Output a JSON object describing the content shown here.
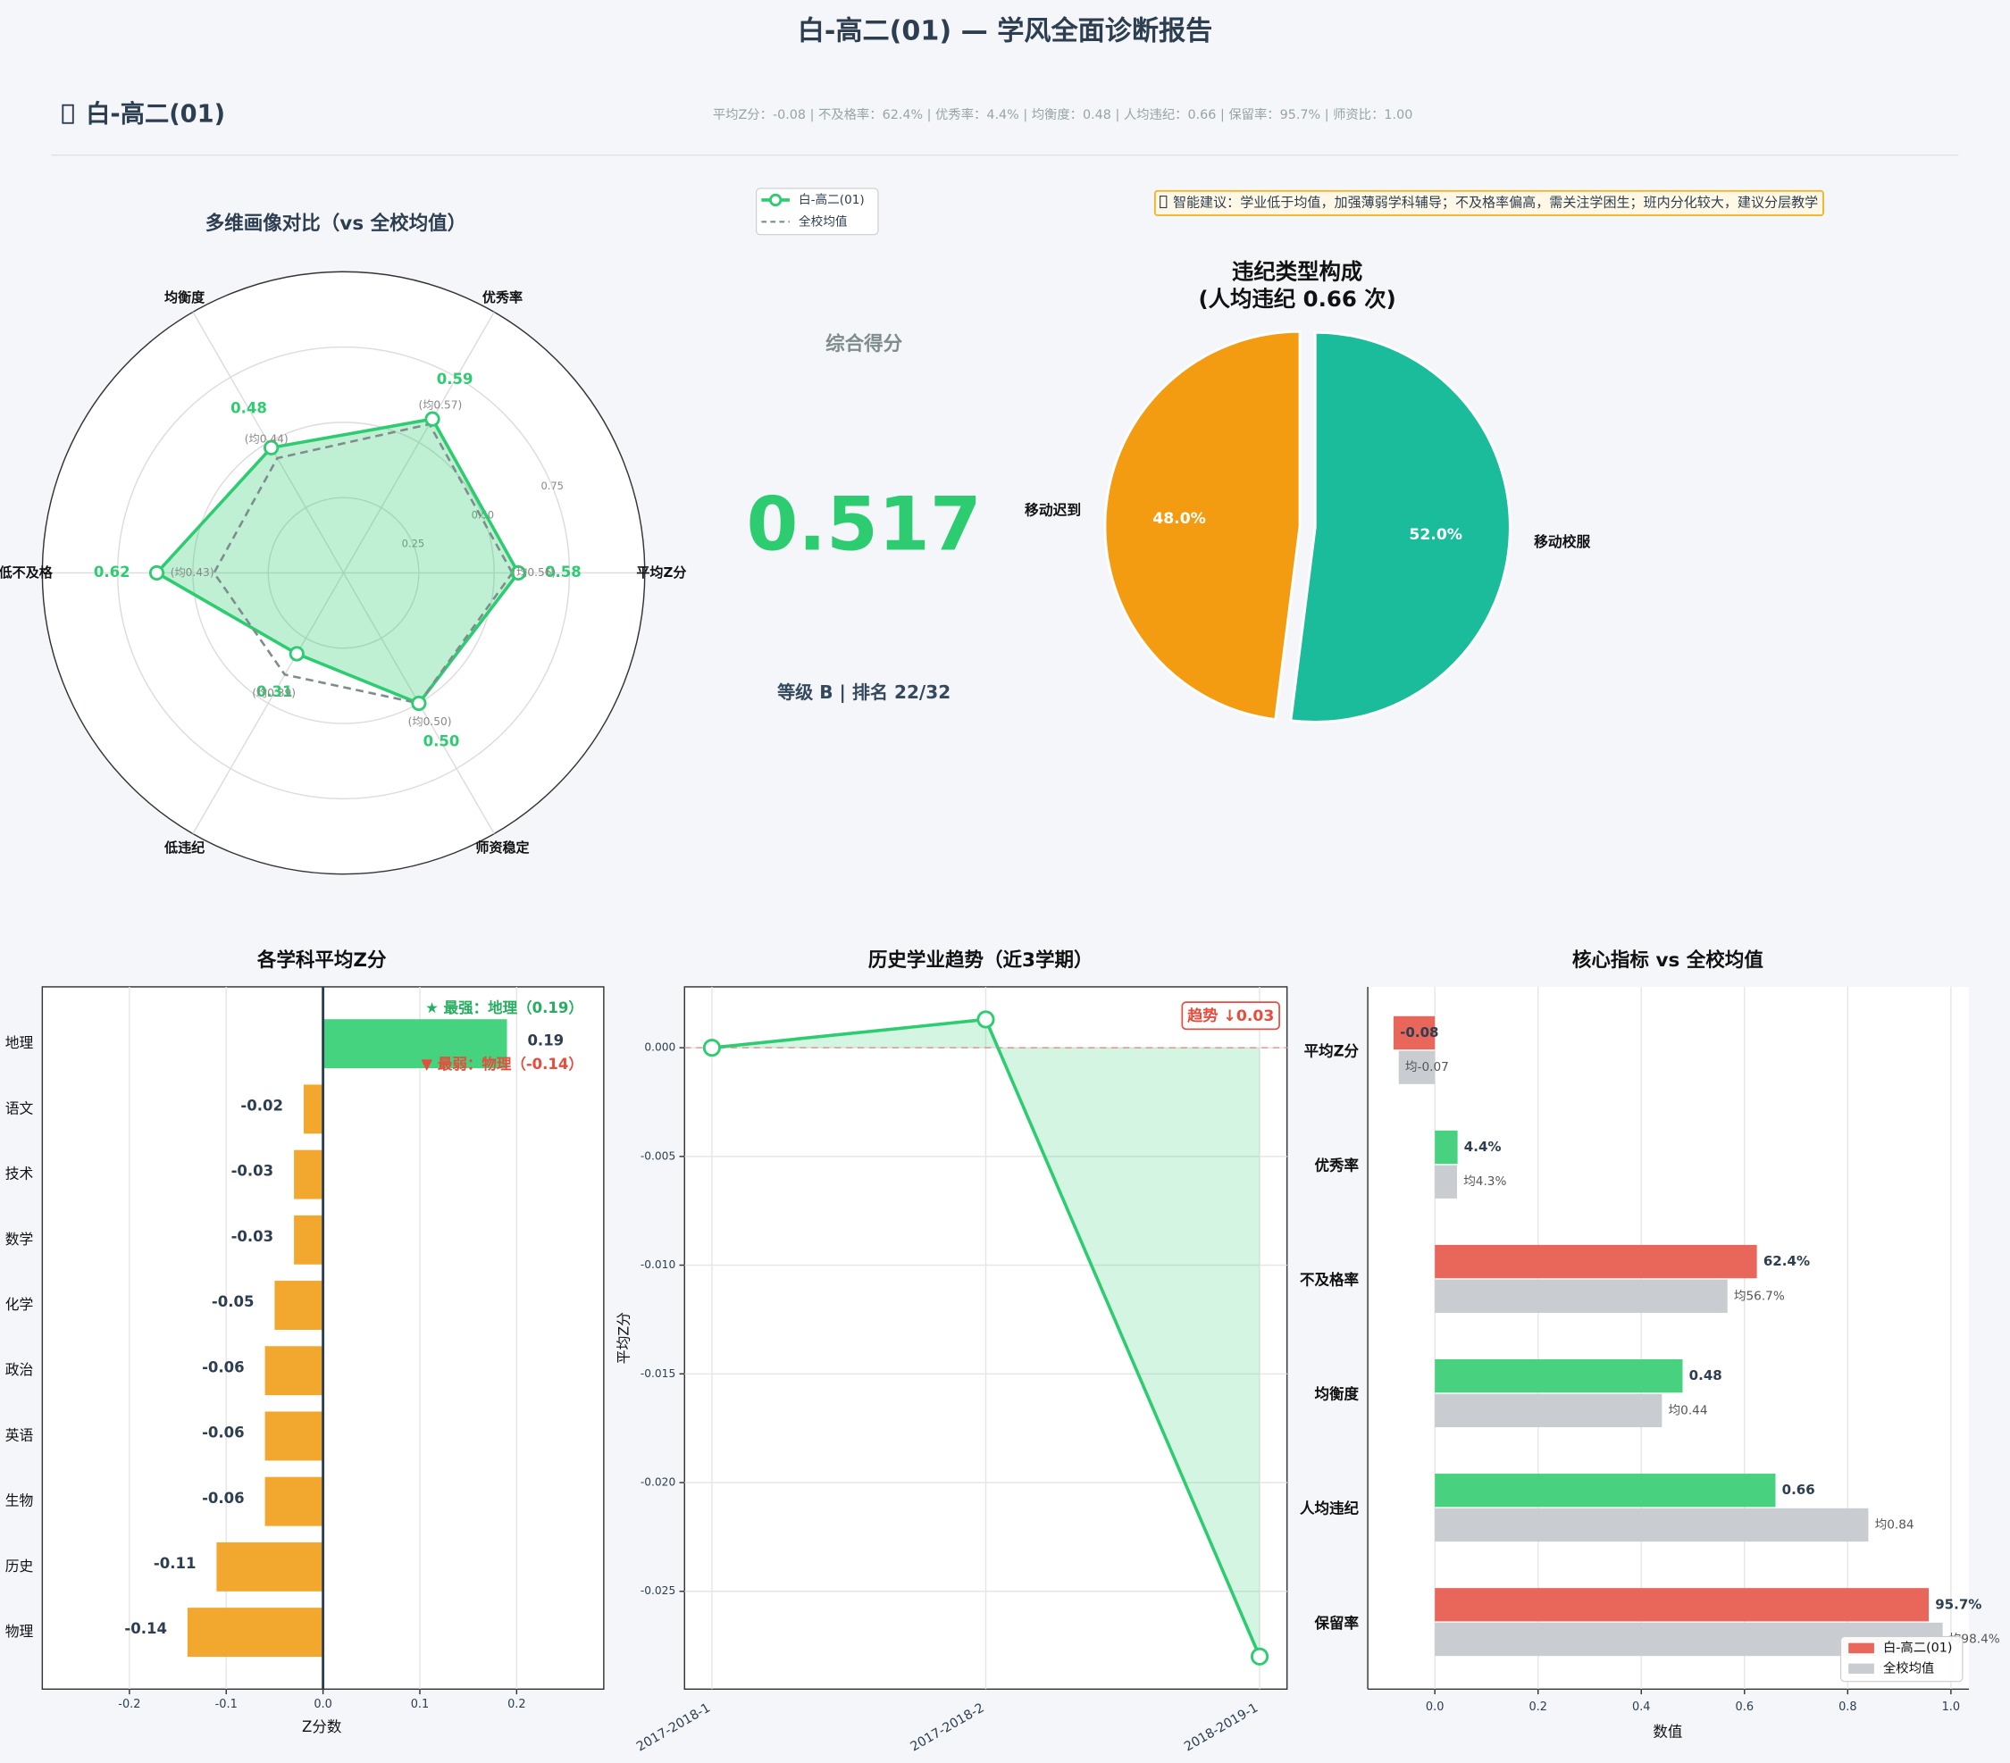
{
  "title": "白-高二(01) — 学风全面诊断报告",
  "header": {
    "class_name": "白-高二(01)",
    "summary": "平均Z分：-0.08  |  不及格率：62.4%  |  优秀率：4.4%  |  均衡度：0.48  |  人均违纪：0.66  |  保留率：95.7%  |  师资比：1.00"
  },
  "score": {
    "label": "综合得分",
    "value": 0.517,
    "rank_line": "等级 B  |  排名 22/32"
  },
  "advice": "智能建议：学业低于均值，加强薄弱学科辅导；不及格率偏高，需关注学困生；班内分化较大，建议分层教学",
  "chart_data": [
    {
      "type": "radar",
      "title": "多维画像对比（vs 全校均值）",
      "categories": [
        "平均Z分",
        "优秀率",
        "均衡度",
        "低不及格",
        "低违纪",
        "师资稳定"
      ],
      "rlim": [
        0,
        1
      ],
      "rticks": [
        0.25,
        {
          "value": 0.5,
          "label": "0.50"
        },
        0.75
      ],
      "legend": "top",
      "series": [
        {
          "name": "白-高二(01)",
          "color": "#2ecc71",
          "marker": "o",
          "values": [
            0.58,
            0.59,
            0.48,
            0.62,
            0.31,
            0.5
          ],
          "value_labels": [
            "0.58",
            "0.59",
            "0.48",
            "0.62",
            "0.31",
            "0.50"
          ]
        },
        {
          "name": "全校均值",
          "color": "#7f8c8d",
          "linestyle": "dashed",
          "values": [
            0.56,
            0.57,
            0.44,
            0.43,
            0.39,
            0.5
          ],
          "value_labels": [
            "(均0.56)",
            "(均0.57)",
            "(均0.44)",
            "(均0.43)",
            "(均0.39)",
            "(均0.50)"
          ]
        }
      ]
    },
    {
      "type": "pie",
      "title": "违纪类型构成",
      "subtitle": "(人均违纪 0.66 次)",
      "categories": [
        "移动迟到",
        "移动校服"
      ],
      "values": [
        48.0,
        52.0
      ],
      "value_labels": [
        "48.0%",
        "52.0%"
      ],
      "colors": [
        "#f39c12",
        "#1abc9c"
      ]
    },
    {
      "type": "hbar",
      "title": "各学科平均Z分",
      "categories": [
        "地理",
        "语文",
        "技术",
        "数学",
        "化学",
        "政治",
        "英语",
        "生物",
        "历史",
        "物理"
      ],
      "values": [
        0.19,
        -0.02,
        -0.03,
        -0.03,
        -0.05,
        -0.06,
        -0.06,
        -0.06,
        -0.11,
        -0.14
      ],
      "colors": [
        "#46d37f",
        "#f2a72e",
        "#f2a72e",
        "#f2a72e",
        "#f2a72e",
        "#f2a72e",
        "#f2a72e",
        "#f2a72e",
        "#f2a72e",
        "#f2a72e"
      ],
      "xlim": [
        -0.29,
        0.29
      ],
      "xticks": [
        -0.2,
        -0.1,
        {
          "value": 0,
          "label": "0.0"
        },
        0.1,
        0.2
      ],
      "xlabel": "Z分数",
      "grid": true,
      "annotations": [
        {
          "text": "★ 最强：地理（0.19）",
          "color": "#27ae60"
        },
        {
          "text": "▼ 最弱：物理（-0.14）",
          "color": "#e74c3c"
        }
      ]
    },
    {
      "type": "line",
      "title": "历史学业趋势（近3学期）",
      "categories": [
        "2017-2018-1",
        "2017-2018-2",
        "2018-2019-1"
      ],
      "values": [
        0.0,
        0.0013,
        -0.028
      ],
      "color": "#2ecc71",
      "ylim": [
        -0.0295,
        0.0028
      ],
      "yticks": [
        {
          "value": 0,
          "label": "0.000"
        },
        -0.005,
        {
          "value": -0.01,
          "label": "-0.010"
        },
        -0.015,
        {
          "value": -0.02,
          "label": "-0.020"
        },
        -0.025
      ],
      "ylabel": "平均Z分",
      "annotation": "趋势 ↓0.03",
      "grid": true
    },
    {
      "type": "grouped_hbar",
      "title": "核心指标 vs 全校均值",
      "categories": [
        "平均Z分",
        "优秀率",
        "不及格率",
        "均衡度",
        "人均违纪",
        "保留率"
      ],
      "series": [
        {
          "name": "白-高二(01)",
          "color": "#e8665a",
          "colors": [
            "#e8665a",
            "#48d27f",
            "#e8665a",
            "#48d27f",
            "#48d27f",
            "#e8665a"
          ],
          "values": [
            -0.08,
            0.044,
            0.624,
            0.48,
            0.66,
            0.957
          ],
          "value_labels": [
            "-0.08",
            "4.4%",
            "62.4%",
            "0.48",
            "0.66",
            "95.7%"
          ]
        },
        {
          "name": "全校均值",
          "color": "#c9cdd1",
          "values": [
            -0.07,
            0.043,
            0.567,
            0.44,
            0.84,
            0.984
          ],
          "value_labels": [
            "均-0.07",
            "均4.3%",
            "均56.7%",
            "均0.44",
            "均0.84",
            "均98.4%"
          ]
        }
      ],
      "xlim": [
        -0.13,
        1.035
      ],
      "xticks": [
        {
          "value": 0,
          "label": "0.0"
        },
        0.2,
        0.4,
        0.6,
        0.8,
        {
          "value": 1,
          "label": "1.0"
        }
      ],
      "xlabel": "数值",
      "legend": "lower right",
      "grid": true
    }
  ]
}
